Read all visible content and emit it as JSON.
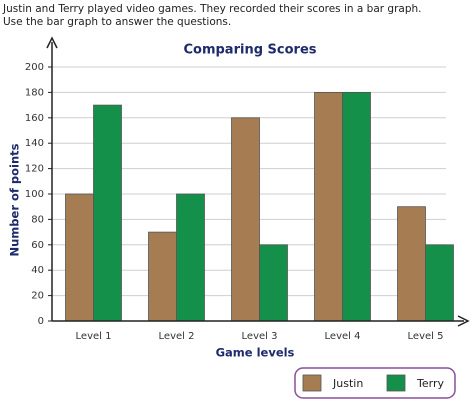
{
  "instructions": "Justin and Terry played video games. They recorded their scores in a bar graph. Use the bar graph to answer the questions.",
  "chart_data": {
    "type": "bar",
    "title": "Comparing Scores",
    "x_label": "Game levels",
    "y_label": "Number of points",
    "categories": [
      "Level 1",
      "Level 2",
      "Level 3",
      "Level 4",
      "Level 5"
    ],
    "series": [
      {
        "name": "Justin",
        "color": "#a67c52",
        "values": [
          100,
          70,
          160,
          180,
          90
        ]
      },
      {
        "name": "Terry",
        "color": "#14904a",
        "values": [
          170,
          100,
          60,
          180,
          60
        ]
      }
    ],
    "ylim": [
      0,
      200
    ],
    "yticks": [
      0,
      20,
      40,
      60,
      80,
      100,
      120,
      140,
      160,
      180,
      200
    ],
    "grid": true,
    "legend": "bottom-right"
  }
}
